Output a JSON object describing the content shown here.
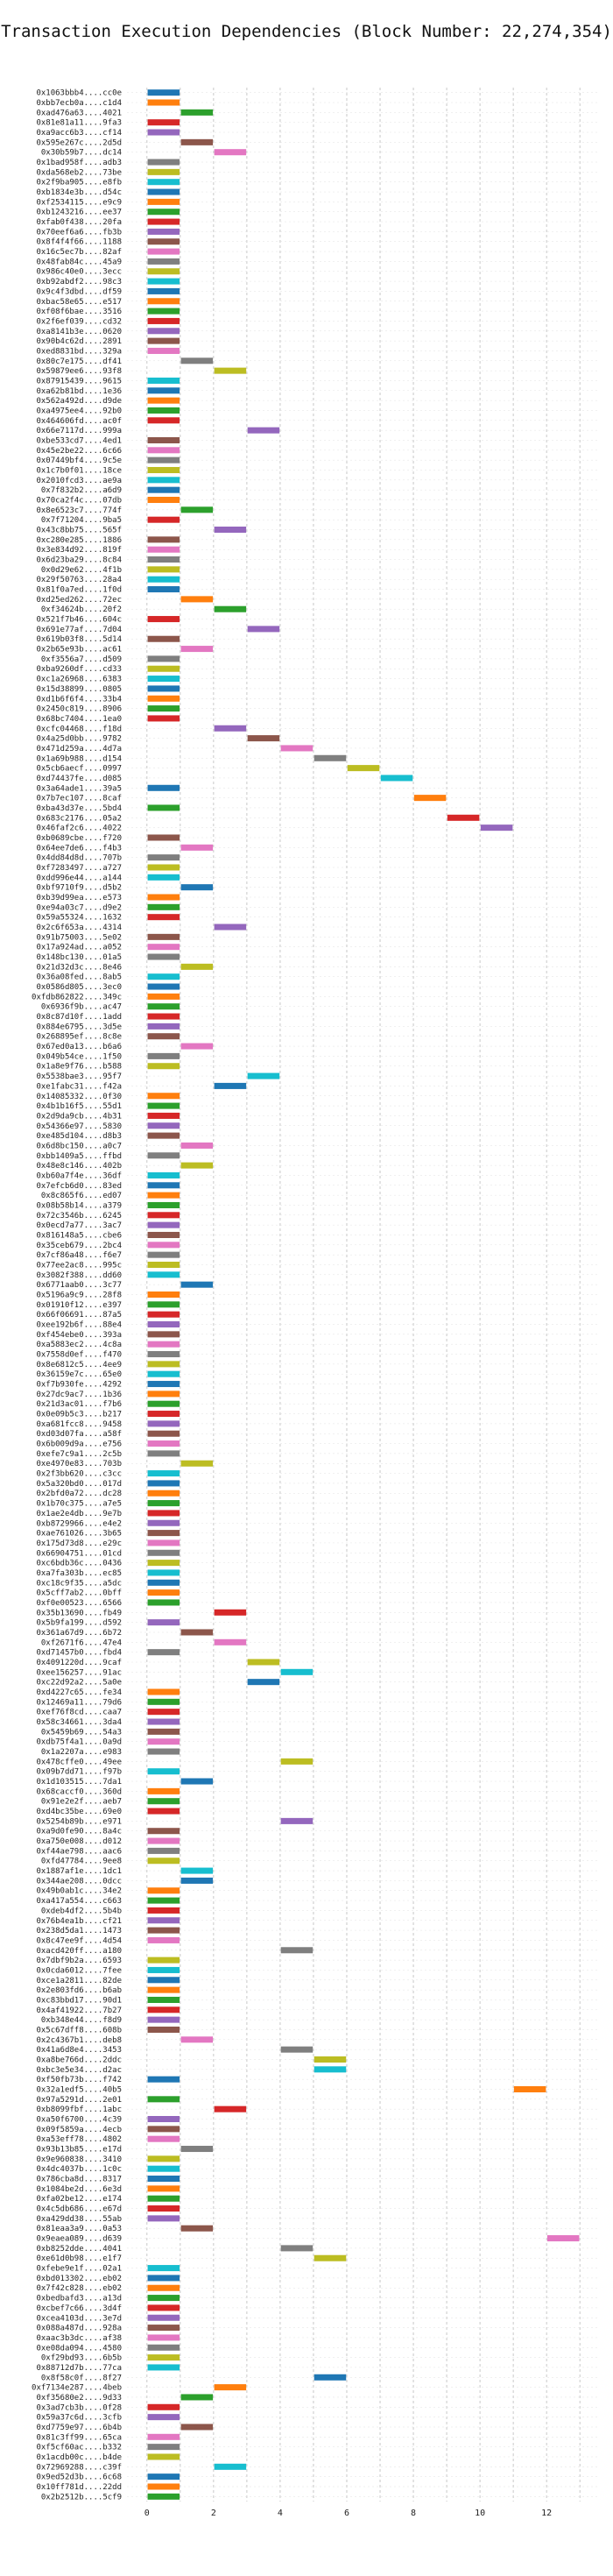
{
  "chart_data": {
    "type": "bar",
    "title": "Transaction Execution Dependencies (Block Number: 22,274,354)",
    "xlabel": "",
    "ylabel": "",
    "xlim": [
      -0.6,
      13.6
    ],
    "xticks": [
      0,
      2,
      4,
      6,
      8,
      10,
      12
    ],
    "grid": true,
    "colors": [
      "#1f77b4",
      "#ff7f0e",
      "#2ca02c",
      "#d62728",
      "#9467bd",
      "#8c564b",
      "#e377c2",
      "#7f7f7f",
      "#bcbd22",
      "#17becf"
    ],
    "rows": [
      [
        "0x1063bbb4....cc0e",
        0
      ],
      [
        "0xbb7ecb0a....c1d4",
        0
      ],
      [
        "0xad476a63....4021",
        1
      ],
      [
        "0x81e81a11....9fa3",
        0
      ],
      [
        "0xa9acc6b3....cf14",
        0
      ],
      [
        "0x595e267c....2d5d",
        1
      ],
      [
        "0x30b59b7....dc14",
        2
      ],
      [
        "0x1bad958f....adb3",
        0
      ],
      [
        "0xda568eb2....73be",
        0
      ],
      [
        "0x2f9ba905....e8fb",
        0
      ],
      [
        "0xb1834e3b....d54c",
        0
      ],
      [
        "0xf2534115....e9c9",
        0
      ],
      [
        "0xb1243216....ee37",
        0
      ],
      [
        "0xfab0f438....20fa",
        0
      ],
      [
        "0x70eef6a6....fb3b",
        0
      ],
      [
        "0x8f4f4f66....1188",
        0
      ],
      [
        "0x16c5ec7b....82af",
        0
      ],
      [
        "0x48fab84c....45a9",
        0
      ],
      [
        "0x986c40e0....3ecc",
        0
      ],
      [
        "0xb92abdf2....98c3",
        0
      ],
      [
        "0x9c4f3dbd....df59",
        0
      ],
      [
        "0xbac58e65....e517",
        0
      ],
      [
        "0xf08f6bae....3516",
        0
      ],
      [
        "0x2f6ef039....cd32",
        0
      ],
      [
        "0xa8141b3e....0620",
        0
      ],
      [
        "0x90b4c62d....2891",
        0
      ],
      [
        "0xed8831bd....329a",
        0
      ],
      [
        "0x80c7e175....df41",
        1
      ],
      [
        "0x59879ee6....93f8",
        2
      ],
      [
        "0x87915439....9615",
        0
      ],
      [
        "0xa62b81bd....1e36",
        0
      ],
      [
        "0x562a492d....d9de",
        0
      ],
      [
        "0xa4975ee4....92b0",
        0
      ],
      [
        "0x464606fd....ac0f",
        0
      ],
      [
        "0x66e7117d....999a",
        3
      ],
      [
        "0xbe533cd7....4ed1",
        0
      ],
      [
        "0x45e2be22....6c66",
        0
      ],
      [
        "0x07449bf4....9c5e",
        0
      ],
      [
        "0x1c7b0f01....18ce",
        0
      ],
      [
        "0x2010fcd3....ae9a",
        0
      ],
      [
        "0x7f832b2....a6d9",
        0
      ],
      [
        "0x70ca2f4c....07db",
        0
      ],
      [
        "0x8e6523c7....774f",
        1
      ],
      [
        "0x7f71204....9ba5",
        0
      ],
      [
        "0x43c8bb75....565f",
        2
      ],
      [
        "0xc280e285....1886",
        0
      ],
      [
        "0x3e834d92....819f",
        0
      ],
      [
        "0x6d23ba29....8c84",
        0
      ],
      [
        "0x0d29e62....4f1b",
        0
      ],
      [
        "0x29f50763....28a4",
        0
      ],
      [
        "0x81f0a7ed....1f0d",
        0
      ],
      [
        "0xd25ed262....72ec",
        1
      ],
      [
        "0xf34624b....20f2",
        2
      ],
      [
        "0x521f7b46....604c",
        0
      ],
      [
        "0x691e77af....7d04",
        3
      ],
      [
        "0x619b03f8....5d14",
        0
      ],
      [
        "0x2b65e93b....ac61",
        1
      ],
      [
        "0xf3556a7....d509",
        0
      ],
      [
        "0xba9260df....cd33",
        0
      ],
      [
        "0xc1a26968....6383",
        0
      ],
      [
        "0x15d38899....0805",
        0
      ],
      [
        "0xd1b6f6f4....33b4",
        0
      ],
      [
        "0x2450c819....8906",
        0
      ],
      [
        "0x68bc7404....1ea0",
        0
      ],
      [
        "0xcfc04468....f18d",
        2
      ],
      [
        "0x4a25d0bb....9782",
        3
      ],
      [
        "0x471d259a....4d7a",
        4
      ],
      [
        "0x1a69b988....d154",
        5
      ],
      [
        "0x5cb6aecf....0997",
        6
      ],
      [
        "0xd74437fe....d085",
        7
      ],
      [
        "0x3a64ade1....39a5",
        0
      ],
      [
        "0x7b7ec107....8caf",
        8
      ],
      [
        "0xba43d37e....5bd4",
        0
      ],
      [
        "0x683c2176....05a2",
        9
      ],
      [
        "0x46faf2c6....4022",
        10
      ],
      [
        "0xb0689cbe....f720",
        0
      ],
      [
        "0x64ee7de6....f4b3",
        1
      ],
      [
        "0x4dd84d8d....707b",
        0
      ],
      [
        "0xf7283497....a727",
        0
      ],
      [
        "0xdd996e44....a144",
        0
      ],
      [
        "0xbf9710f9....d5b2",
        1
      ],
      [
        "0xb39d99ea....e573",
        0
      ],
      [
        "0xe94a03c7....d9e2",
        0
      ],
      [
        "0x59a55324....1632",
        0
      ],
      [
        "0x2c6f653a....4314",
        2
      ],
      [
        "0x91b75003....5e02",
        0
      ],
      [
        "0x17a924ad....a052",
        0
      ],
      [
        "0x148bc130....01a5",
        0
      ],
      [
        "0x21d32d3c....8e46",
        1
      ],
      [
        "0x36a08fed....8ab5",
        0
      ],
      [
        "0x0586d805....3ec0",
        0
      ],
      [
        "0xfdb862822....349c",
        0
      ],
      [
        "0x6936f9b....ac47",
        0
      ],
      [
        "0x8c87d10f....1add",
        0
      ],
      [
        "0x884e6795....3d5e",
        0
      ],
      [
        "0x268895ef....8c8e",
        0
      ],
      [
        "0x67ed0a13....b6a6",
        1
      ],
      [
        "0x049b54ce....1f50",
        0
      ],
      [
        "0x1a8e9f76....b588",
        0
      ],
      [
        "0x5538bae3....95f7",
        3
      ],
      [
        "0xe1fabc31....f42a",
        2
      ],
      [
        "0x14085332....0f30",
        0
      ],
      [
        "0x4b1b16f5....55d1",
        0
      ],
      [
        "0x2d9da9cb....4b31",
        0
      ],
      [
        "0x54366e97....5830",
        0
      ],
      [
        "0xe485d104....d8b3",
        0
      ],
      [
        "0x6d8bc150....a0c7",
        1
      ],
      [
        "0xbb1409a5....ffbd",
        0
      ],
      [
        "0x48e8c146....402b",
        1
      ],
      [
        "0xb60a7f4e....36df",
        0
      ],
      [
        "0x7efcb6d0....83ed",
        0
      ],
      [
        "0x8c865f6....ed07",
        0
      ],
      [
        "0x08b58b14....a379",
        0
      ],
      [
        "0x72c3546b....6245",
        0
      ],
      [
        "0x0ecd7a77....3ac7",
        0
      ],
      [
        "0x816148a5....cbe6",
        0
      ],
      [
        "0x35ceb679....2bc4",
        0
      ],
      [
        "0x7cf86a48....f6e7",
        0
      ],
      [
        "0x77ee2ac8....995c",
        0
      ],
      [
        "0x3082f388....dd60",
        0
      ],
      [
        "0x6771aab0....3c77",
        1
      ],
      [
        "0x5196a9c9....28f8",
        0
      ],
      [
        "0x01910f12....e397",
        0
      ],
      [
        "0x66f06691....87a5",
        0
      ],
      [
        "0xee192b6f....88e4",
        0
      ],
      [
        "0xf454ebe0....393a",
        0
      ],
      [
        "0xa5883ec2....4c8a",
        0
      ],
      [
        "0x7558d0ef....f470",
        0
      ],
      [
        "0x8e6812c5....4ee9",
        0
      ],
      [
        "0x36159e7c....65e0",
        0
      ],
      [
        "0xf7b930fe....4292",
        0
      ],
      [
        "0x27dc9ac7....1b36",
        0
      ],
      [
        "0x21d3ac01....f7b6",
        0
      ],
      [
        "0x0e09b5c3....b217",
        0
      ],
      [
        "0xa681fcc8....9458",
        0
      ],
      [
        "0xd03d07fa....a58f",
        0
      ],
      [
        "0x6b009d9a....e756",
        0
      ],
      [
        "0xefe7c9a1....2c5b",
        0
      ],
      [
        "0xe4970e83....703b",
        1
      ],
      [
        "0x2f3bb620....c3cc",
        0
      ],
      [
        "0x5a320bd0....017d",
        0
      ],
      [
        "0x2bfd0a72....dc28",
        0
      ],
      [
        "0x1b70c375....a7e5",
        0
      ],
      [
        "0x1ae2e4db....9e7b",
        0
      ],
      [
        "0xb8729966....e4e2",
        0
      ],
      [
        "0xae761026....3b65",
        0
      ],
      [
        "0x175d73d8....e29c",
        0
      ],
      [
        "0x66904751....01cd",
        0
      ],
      [
        "0xc6bdb36c....0436",
        0
      ],
      [
        "0xa7fa303b....ec85",
        0
      ],
      [
        "0xc18c9f35....a5dc",
        0
      ],
      [
        "0x5cff7ab2....0bff",
        0
      ],
      [
        "0xf0e00523....6566",
        0
      ],
      [
        "0x35b13690....fb49",
        2
      ],
      [
        "0x5b9fa199....d592",
        0
      ],
      [
        "0x361a67d9....6b72",
        1
      ],
      [
        "0xf2671f6....47e4",
        2
      ],
      [
        "0xd71457b0....fbd4",
        0
      ],
      [
        "0x4091220d....9caf",
        3
      ],
      [
        "0xee156257....91ac",
        4
      ],
      [
        "0xc22d92a2....5a0e",
        3
      ],
      [
        "0xd4227c65....fe34",
        0
      ],
      [
        "0x12469a11....79d6",
        0
      ],
      [
        "0xef76f8cd....caa7",
        0
      ],
      [
        "0x58c34661....3da4",
        0
      ],
      [
        "0x5459b69....54a3",
        0
      ],
      [
        "0xdb75f4a1....0a9d",
        0
      ],
      [
        "0x1a2207a....e983",
        0
      ],
      [
        "0x478cffe0....49ee",
        4
      ],
      [
        "0x09b7dd71....f97b",
        0
      ],
      [
        "0x1d103515....7da1",
        1
      ],
      [
        "0x68caccf0....360d",
        0
      ],
      [
        "0x91e2e2f....aeb7",
        0
      ],
      [
        "0xd4bc35be....69e0",
        0
      ],
      [
        "0x5254b89b....e971",
        4
      ],
      [
        "0xa9d0fe90....8a4c",
        0
      ],
      [
        "0xa750e008....d012",
        0
      ],
      [
        "0xf44ae798....aac6",
        0
      ],
      [
        "0xfd47784....9ee8",
        0
      ],
      [
        "0x1887af1e....1dc1",
        1
      ],
      [
        "0x344ae208....0dcc",
        1
      ],
      [
        "0x49b0ab1c....34e2",
        0
      ],
      [
        "0xa417a554....c663",
        0
      ],
      [
        "0xdeb4df2....5b4b",
        0
      ],
      [
        "0x76b4ea1b....cf21",
        0
      ],
      [
        "0x238d5da1....1473",
        0
      ],
      [
        "0x8c47ee9f....4d54",
        0
      ],
      [
        "0xacd420ff....a180",
        4
      ],
      [
        "0x7dbf9b2a....6593",
        0
      ],
      [
        "0x0cda6012....7fee",
        0
      ],
      [
        "0xce1a2811....82de",
        0
      ],
      [
        "0x2e803fd6....b6ab",
        0
      ],
      [
        "0xc83bbd17....90d1",
        0
      ],
      [
        "0x4af41922....7b27",
        0
      ],
      [
        "0xb348e44....f8d9",
        0
      ],
      [
        "0x5c67dff8....608b",
        0
      ],
      [
        "0x2c4367b1....deb8",
        1
      ],
      [
        "0x41a6d8e4....3453",
        4
      ],
      [
        "0xa8be766d....2ddc",
        5
      ],
      [
        "0xbc3e5e34....d2ac",
        5
      ],
      [
        "0xf50fb73b....f742",
        0
      ],
      [
        "0x32a1edf5....40b5",
        11
      ],
      [
        "0x97a5291d....2e01",
        0
      ],
      [
        "0xb8099fbf....1abc",
        2
      ],
      [
        "0xa50f6700....4c39",
        0
      ],
      [
        "0x09f5859a....4ecb",
        0
      ],
      [
        "0xa53eff78....4802",
        0
      ],
      [
        "0x93b13b85....e17d",
        1
      ],
      [
        "0x9e960838....3410",
        0
      ],
      [
        "0x4dc4037b....1c0c",
        0
      ],
      [
        "0x786cba8d....8317",
        0
      ],
      [
        "0x1084be2d....6e3d",
        0
      ],
      [
        "0xfa02be12....e174",
        0
      ],
      [
        "0x4c5db686....e67d",
        0
      ],
      [
        "0xa429dd38....55ab",
        0
      ],
      [
        "0x81eaa3a9....0a53",
        1
      ],
      [
        "0x9eaea089....d639",
        12
      ],
      [
        "0xb8252dde....4041",
        4
      ],
      [
        "0xe61d0b98....e1f7",
        5
      ],
      [
        "0xfebe9e1f....02a1",
        0
      ],
      [
        "0xbd013302....eb02",
        0
      ],
      [
        "0x7f42c828....eb02",
        0
      ],
      [
        "0xbedbafd3....a13d",
        0
      ],
      [
        "0xcbef7c66....3d4f",
        0
      ],
      [
        "0xcea4103d....3e7d",
        0
      ],
      [
        "0x088a487d....928a",
        0
      ],
      [
        "0xaac3b3dc....af38",
        0
      ],
      [
        "0xe08da094....4580",
        0
      ],
      [
        "0xf29bd93....6b5b",
        0
      ],
      [
        "0x88712d7b....77ca",
        0
      ],
      [
        "0x8f58c0f....8f27",
        5
      ],
      [
        "0xf7134e287....4beb",
        2
      ],
      [
        "0xf35680e2....9d33",
        1
      ],
      [
        "0x3ad7cb3b....0f28",
        0
      ],
      [
        "0x59a37c6d....3cfb",
        0
      ],
      [
        "0xd7759e97....6b4b",
        1
      ],
      [
        "0x81c3ff99....65ca",
        0
      ],
      [
        "0xf5cf60ac....b332",
        0
      ],
      [
        "0x1acdb00c....b4de",
        0
      ],
      [
        "0x72969288....c39f",
        2
      ],
      [
        "0x9ed52d3b....6c68",
        0
      ],
      [
        "0x10ff781d....22dd",
        0
      ],
      [
        "0x2b2512b....5cf9",
        0
      ]
    ]
  }
}
